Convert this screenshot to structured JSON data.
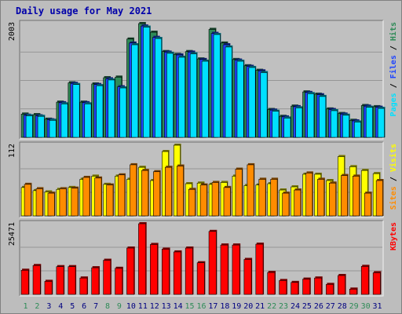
{
  "chart_data": [
    {
      "type": "bar",
      "title": "Daily usage for May 2021",
      "categories": [
        "1",
        "2",
        "3",
        "4",
        "5",
        "6",
        "7",
        "8",
        "9",
        "10",
        "11",
        "12",
        "13",
        "14",
        "15",
        "16",
        "17",
        "18",
        "19",
        "20",
        "21",
        "22",
        "23",
        "24",
        "25",
        "26",
        "27",
        "28",
        "29",
        "30",
        "31"
      ],
      "weekend_color": "#2e8b57",
      "weekend_days": [
        "1",
        "2",
        "8",
        "9",
        "15",
        "16",
        "22",
        "23",
        "29",
        "30"
      ],
      "ylabel_top_value": "2003",
      "ylim": [
        0,
        2003
      ],
      "legend": [
        "Pages",
        "Files",
        "Hits"
      ],
      "series": [
        {
          "name": "Hits",
          "color": "#2e8b57",
          "values": [
            410,
            400,
            320,
            620,
            960,
            620,
            940,
            1050,
            1060,
            1730,
            2003,
            1850,
            1510,
            1460,
            1510,
            1380,
            1900,
            1660,
            1370,
            1260,
            1180,
            490,
            370,
            550,
            800,
            760,
            500,
            420,
            300,
            560,
            540
          ]
        },
        {
          "name": "Files",
          "color": "#1f45ff",
          "values": [
            390,
            380,
            310,
            610,
            950,
            610,
            930,
            1030,
            890,
            1660,
            1960,
            1760,
            1500,
            1450,
            1500,
            1370,
            1830,
            1630,
            1360,
            1250,
            1170,
            480,
            360,
            540,
            790,
            750,
            490,
            410,
            290,
            550,
            530
          ]
        },
        {
          "name": "Pages",
          "color": "#00e0ff",
          "values": [
            380,
            370,
            300,
            590,
            930,
            590,
            910,
            1010,
            870,
            1630,
            1940,
            1740,
            1480,
            1410,
            1470,
            1340,
            1810,
            1590,
            1340,
            1230,
            1140,
            460,
            340,
            520,
            770,
            720,
            470,
            390,
            270,
            530,
            510
          ]
        }
      ]
    },
    {
      "type": "bar",
      "categories": [
        "1",
        "2",
        "3",
        "4",
        "5",
        "6",
        "7",
        "8",
        "9",
        "10",
        "11",
        "12",
        "13",
        "14",
        "15",
        "16",
        "17",
        "18",
        "19",
        "20",
        "21",
        "22",
        "23",
        "24",
        "25",
        "26",
        "27",
        "28",
        "29",
        "30",
        "31"
      ],
      "ylabel_top_value": "112",
      "ylim": [
        0,
        112
      ],
      "legend": [
        "Sites",
        "Visits"
      ],
      "series": [
        {
          "name": "Visits",
          "color": "#ffff00",
          "values": [
            45,
            40,
            38,
            42,
            45,
            58,
            63,
            50,
            63,
            58,
            77,
            56,
            102,
            112,
            51,
            52,
            50,
            53,
            63,
            48,
            49,
            51,
            41,
            46,
            66,
            66,
            56,
            94,
            78,
            72,
            67
          ]
        },
        {
          "name": "Sites",
          "color": "#ff8c00",
          "values": [
            50,
            43,
            36,
            43,
            44,
            61,
            60,
            49,
            65,
            81,
            72,
            70,
            77,
            79,
            42,
            49,
            53,
            45,
            74,
            81,
            58,
            58,
            36,
            41,
            68,
            58,
            52,
            64,
            63,
            36,
            56
          ]
        }
      ]
    },
    {
      "type": "bar",
      "categories": [
        "1",
        "2",
        "3",
        "4",
        "5",
        "6",
        "7",
        "8",
        "9",
        "10",
        "11",
        "12",
        "13",
        "14",
        "15",
        "16",
        "17",
        "18",
        "19",
        "20",
        "21",
        "22",
        "23",
        "24",
        "25",
        "26",
        "27",
        "28",
        "29",
        "30",
        "31"
      ],
      "ylabel_top_value": "25471",
      "ylim": [
        0,
        25471
      ],
      "legend": [
        "KBytes"
      ],
      "series": [
        {
          "name": "KBytes",
          "color": "#ff0000",
          "values": [
            8700,
            10400,
            4700,
            10000,
            10000,
            5900,
            9600,
            12300,
            9400,
            16700,
            25471,
            18000,
            16300,
            15300,
            16700,
            11400,
            22700,
            17800,
            17800,
            12600,
            18100,
            7900,
            5000,
            4300,
            5500,
            5900,
            3600,
            6800,
            1900,
            10100,
            7800
          ]
        }
      ]
    }
  ],
  "legend_separator": " / ",
  "colors": {
    "title": "#0000aa",
    "frame_light": "#f2f2f2",
    "frame_dark": "#707070",
    "panel_bg": "#c0c0c0",
    "outer_bg": "#bdbdbd",
    "gridline": "#888888",
    "weekday_label": "#000080"
  }
}
